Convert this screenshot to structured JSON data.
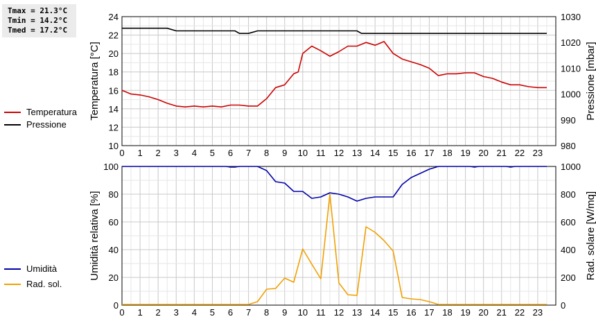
{
  "stats": {
    "tmax": "Tmax = 21.3°C",
    "tmin": "Tmin = 14.2°C",
    "tmed": "Tmed = 17.2°C"
  },
  "legend_top": [
    {
      "label": "Temperatura",
      "color": "#cc0000"
    },
    {
      "label": "Pressione",
      "color": "#000000"
    }
  ],
  "legend_bottom": [
    {
      "label": "Umidità",
      "color": "#0000aa"
    },
    {
      "label": "Rad. sol.",
      "color": "#f0a000"
    }
  ],
  "chart_data": [
    {
      "type": "line",
      "x_ticks": [
        "0",
        "1",
        "2",
        "3",
        "4",
        "5",
        "6",
        "7",
        "8",
        "9",
        "10",
        "11",
        "12",
        "13",
        "14",
        "15",
        "16",
        "17",
        "18",
        "19",
        "20",
        "21",
        "22",
        "23"
      ],
      "xlim": [
        0,
        24
      ],
      "ylabel": "Temperatura [°C]",
      "y2label": "Pressione [mbar]",
      "ylim": [
        10,
        24
      ],
      "y_ticks": [
        "10",
        "12",
        "14",
        "16",
        "18",
        "20",
        "22",
        "24"
      ],
      "y2lim": [
        980,
        1030
      ],
      "y2_ticks": [
        "980",
        "990",
        "1000",
        "1010",
        "1020",
        "1030"
      ],
      "grid": true,
      "series": [
        {
          "name": "Temperatura",
          "axis": "left",
          "color": "#cc0000",
          "x": [
            0,
            0.25,
            0.5,
            1,
            1.5,
            2,
            2.5,
            3,
            3.5,
            4,
            4.5,
            5,
            5.5,
            6,
            6.5,
            7,
            7.5,
            8,
            8.5,
            9,
            9.5,
            9.75,
            10,
            10.5,
            11,
            11.5,
            12,
            12.5,
            13,
            13.5,
            14,
            14.5,
            15,
            15.5,
            16,
            16.5,
            17,
            17.5,
            18,
            18.5,
            19,
            19.5,
            20,
            20.5,
            21,
            21.5,
            22,
            22.5,
            23,
            23.5
          ],
          "y": [
            16.0,
            15.8,
            15.6,
            15.5,
            15.3,
            15.0,
            14.6,
            14.3,
            14.2,
            14.3,
            14.2,
            14.3,
            14.2,
            14.4,
            14.4,
            14.3,
            14.3,
            15.1,
            16.3,
            16.6,
            17.8,
            18.0,
            20.0,
            20.8,
            20.3,
            19.7,
            20.2,
            20.8,
            20.8,
            21.2,
            20.9,
            21.3,
            20.0,
            19.4,
            19.1,
            18.8,
            18.4,
            17.6,
            17.8,
            17.8,
            17.9,
            17.9,
            17.5,
            17.3,
            16.9,
            16.6,
            16.6,
            16.4,
            16.3,
            16.3
          ]
        },
        {
          "name": "Pressione",
          "axis": "right",
          "color": "#000000",
          "x": [
            0,
            2.5,
            3,
            6.25,
            6.5,
            7,
            7.5,
            13,
            13.25,
            23.5
          ],
          "y": [
            1025.5,
            1025.5,
            1024.5,
            1024.5,
            1023.5,
            1023.5,
            1024.5,
            1024.5,
            1023.5,
            1023.5
          ]
        }
      ]
    },
    {
      "type": "line",
      "x_ticks": [
        "0",
        "1",
        "2",
        "3",
        "4",
        "5",
        "6",
        "7",
        "8",
        "9",
        "10",
        "11",
        "12",
        "13",
        "14",
        "15",
        "16",
        "17",
        "18",
        "19",
        "20",
        "21",
        "22",
        "23"
      ],
      "xlim": [
        0,
        24
      ],
      "ylabel": "Umidità relativa [%]",
      "y2label": "Rad. solare [W/mq]",
      "ylim": [
        0,
        100
      ],
      "y_ticks": [
        "0",
        "20",
        "40",
        "60",
        "80",
        "100"
      ],
      "y2lim": [
        0,
        1000
      ],
      "y2_ticks": [
        "0",
        "200",
        "400",
        "600",
        "800",
        "1000"
      ],
      "grid": true,
      "series": [
        {
          "name": "Umidità",
          "axis": "left",
          "color": "#0000aa",
          "x": [
            0,
            5.75,
            6,
            6.25,
            6.5,
            7.5,
            8,
            8.5,
            9,
            9.5,
            10,
            10.5,
            11,
            11.5,
            12,
            12.5,
            13,
            13.5,
            14,
            14.5,
            15,
            15.5,
            16,
            16.5,
            17,
            17.5,
            19.25,
            19.5,
            19.75,
            21.25,
            21.5,
            21.75,
            23.5
          ],
          "y": [
            100,
            100,
            99.5,
            99.5,
            100,
            100,
            97,
            89,
            88,
            82,
            82,
            77,
            78,
            81,
            80,
            78,
            75,
            77,
            78,
            78,
            78,
            87,
            92,
            95,
            98,
            100,
            100,
            99.5,
            100,
            100,
            99.5,
            100,
            100
          ]
        },
        {
          "name": "Rad. sol.",
          "axis": "right",
          "color": "#f0a000",
          "x": [
            0,
            7,
            7.5,
            8,
            8.5,
            9,
            9.5,
            10,
            10.5,
            11,
            11.5,
            12,
            12.5,
            13,
            13.5,
            14,
            14.5,
            15,
            15.5,
            16,
            16.5,
            17,
            17.5,
            23.5
          ],
          "y": [
            5,
            5,
            25,
            115,
            120,
            195,
            165,
            405,
            295,
            190,
            800,
            160,
            75,
            70,
            565,
            525,
            465,
            390,
            55,
            45,
            40,
            25,
            5,
            5
          ]
        }
      ]
    }
  ]
}
